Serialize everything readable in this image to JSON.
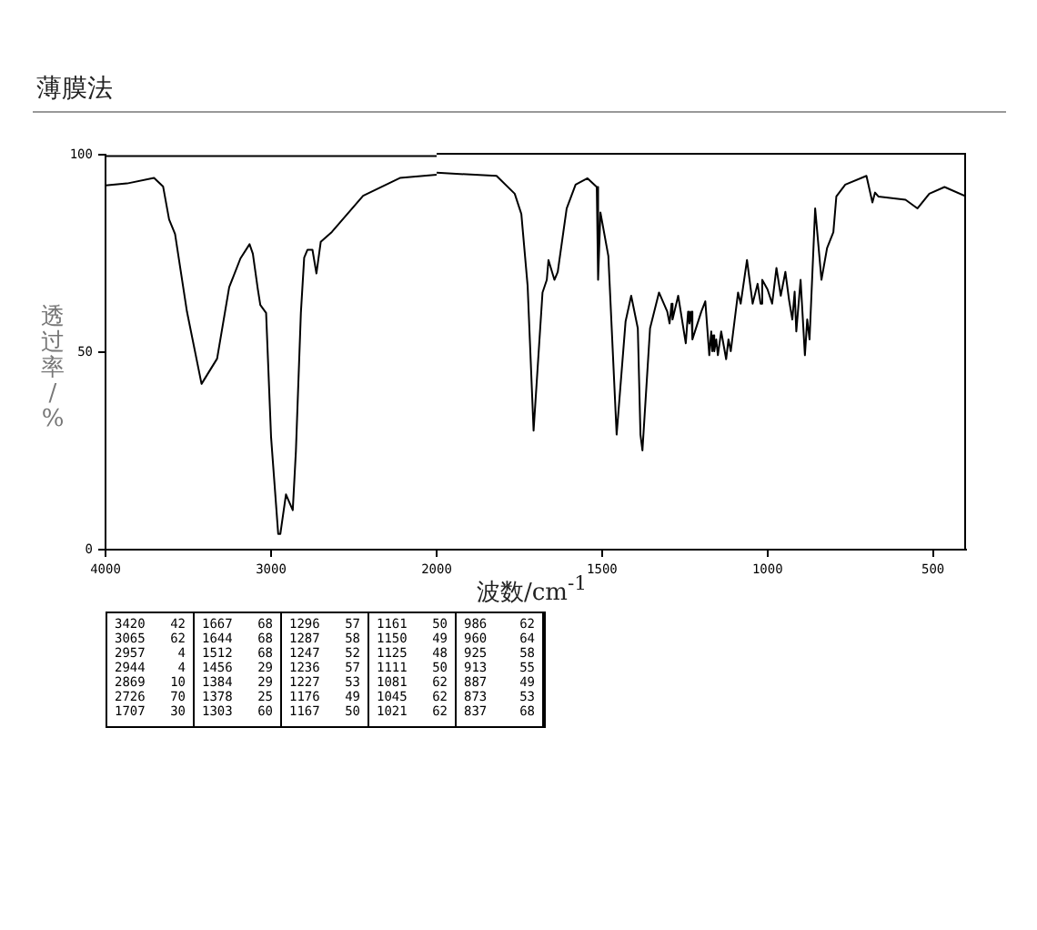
{
  "chart_data": [
    {
      "type": "line",
      "title": "薄膜法",
      "ylabel": "透过率/%",
      "x": [
        4000,
        3870,
        3707,
        3652,
        3616,
        3580,
        3508,
        3420,
        3326,
        3253,
        3185,
        3130,
        3110,
        3080,
        3065,
        3030,
        3000,
        2957,
        2944,
        2910,
        2890,
        2869,
        2850,
        2820,
        2800,
        2780,
        2750,
        2726,
        2700,
        2633,
        2444,
        2222,
        2000
      ],
      "series": [
        {
          "color": "#000000",
          "values": [
            92.3,
            92.8,
            94.2,
            92,
            83.7,
            80,
            60.3,
            42,
            48.4,
            66.5,
            73.8,
            77.4,
            75,
            66,
            62,
            60,
            28.5,
            4,
            4,
            14,
            12,
            10,
            25,
            60,
            74,
            76,
            76,
            70,
            78,
            80.5,
            89.7,
            94.2,
            95
          ]
        }
      ],
      "xlim": [
        4000,
        2000
      ],
      "xticks": [
        4000,
        3000
      ],
      "ylim": [
        0,
        100
      ],
      "yticks": [
        0,
        50,
        100
      ],
      "grid": false,
      "legend": false,
      "marker": "none",
      "line_style": "solid"
    },
    {
      "type": "line",
      "xlabel": "波数/cm$^{-1}$",
      "x": [
        2000,
        1819,
        1764,
        1744,
        1725,
        1707,
        1680,
        1667,
        1662,
        1644,
        1634,
        1607,
        1580,
        1544,
        1516,
        1512,
        1505,
        1481,
        1456,
        1429,
        1412,
        1392,
        1384,
        1378,
        1355,
        1328,
        1303,
        1296,
        1290,
        1287,
        1270,
        1247,
        1240,
        1236,
        1230,
        1227,
        1200,
        1188,
        1176,
        1170,
        1167,
        1164,
        1161,
        1155,
        1150,
        1140,
        1125,
        1118,
        1111,
        1089,
        1081,
        1062,
        1045,
        1030,
        1021,
        1016,
        1000,
        986,
        973,
        960,
        946,
        935,
        925,
        918,
        913,
        900,
        887,
        880,
        873,
        856,
        837,
        820,
        801,
        792,
        765,
        701,
        683,
        675,
        665,
        583,
        547,
        511,
        465,
        400
      ],
      "series": [
        {
          "color": "#000000",
          "values": [
            95,
            94.2,
            89.7,
            84.6,
            66.5,
            30,
            64.8,
            68,
            73,
            68,
            70,
            86,
            92,
            93.6,
            91.4,
            68,
            85,
            74,
            29,
            57.5,
            64,
            55.8,
            29,
            25,
            55.8,
            64.8,
            60,
            57,
            62,
            58,
            64,
            52,
            60,
            57,
            60,
            53,
            60,
            62.6,
            49,
            55,
            50,
            54,
            50,
            53,
            49,
            55,
            48,
            53,
            50,
            64.8,
            62,
            73,
            62,
            67,
            62,
            68,
            65.6,
            62,
            71,
            64,
            70,
            63,
            58,
            65,
            55,
            68,
            49,
            58,
            53,
            86,
            68,
            76,
            80,
            89,
            92,
            94.2,
            87.5,
            90,
            89,
            88.2,
            86,
            89.7,
            91.4,
            89
          ]
        }
      ],
      "xlim": [
        2000,
        400
      ],
      "xticks": [
        2000,
        1500,
        1000,
        500
      ],
      "ylim": [
        0,
        100
      ],
      "tick_labels": "x",
      "grid": false,
      "legend": false,
      "marker": "none",
      "line_style": "solid",
      "annotations": [
        "3420 42",
        "3065 62",
        "2957 4",
        "2944 4",
        "2869 10",
        "2726 70",
        "1707 30",
        "1667 68",
        "1644 68",
        "1512 68",
        "1456 29",
        "1384 29",
        "1378 25",
        "1303 60",
        "1296 57",
        "1287 58",
        "1247 52",
        "1236 57",
        "1227 53",
        "1176 49",
        "1167 50",
        "1161 50",
        "1150 49",
        "1125 48",
        "1111 50",
        "1081 62",
        "1045 62",
        "1021 62",
        "986 62",
        "960 64",
        "925 58",
        "913 55",
        "887 49",
        "873 53",
        "837 68"
      ]
    }
  ]
}
